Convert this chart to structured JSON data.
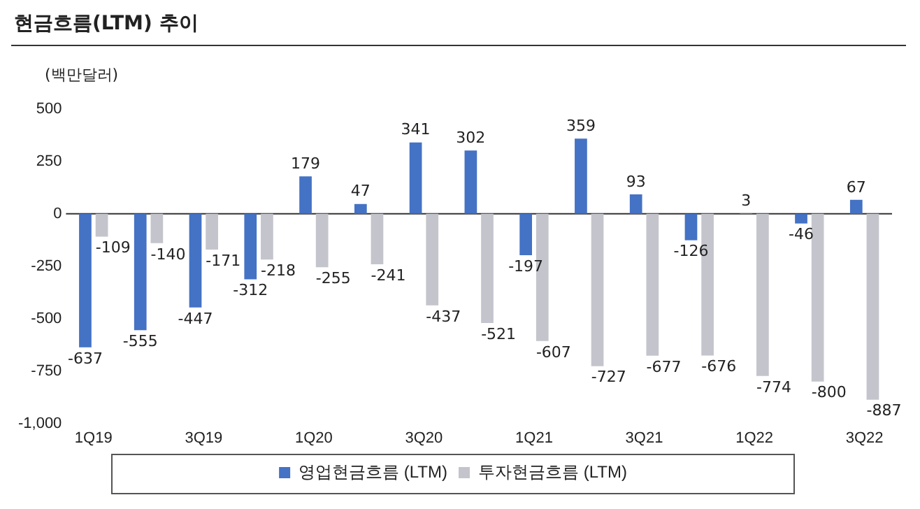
{
  "chart_data": {
    "type": "bar",
    "title": "현금흐름(LTM) 추이",
    "ylabel": "(백만달러)",
    "categories": [
      "1Q19",
      null,
      "3Q19",
      null,
      "1Q20",
      null,
      "3Q20",
      null,
      "1Q21",
      null,
      "3Q21",
      null,
      "1Q22",
      null,
      "3Q22"
    ],
    "series": [
      {
        "name": "영업현금흐름 (LTM)",
        "color": "#4472c4",
        "values": [
          -637,
          -555,
          -447,
          -312,
          179,
          47,
          341,
          302,
          -197,
          359,
          93,
          -126,
          3,
          -46,
          67
        ]
      },
      {
        "name": "투자현금흐름 (LTM)",
        "color": "#c4c5cc",
        "values": [
          -109,
          -140,
          -171,
          -218,
          -255,
          -241,
          -437,
          -521,
          -607,
          -727,
          -677,
          -676,
          -774,
          -800,
          -887
        ]
      }
    ],
    "ylim": [
      -1000,
      500
    ],
    "yticks": [
      {
        "value": -1000,
        "label": "-1,000"
      },
      -750,
      -500,
      -250,
      0,
      250,
      500
    ],
    "ref_lines": [
      {
        "axis": "y",
        "value": 0,
        "color": "#333333"
      }
    ],
    "grid": false,
    "legend": "bottom",
    "data_labels": true
  }
}
